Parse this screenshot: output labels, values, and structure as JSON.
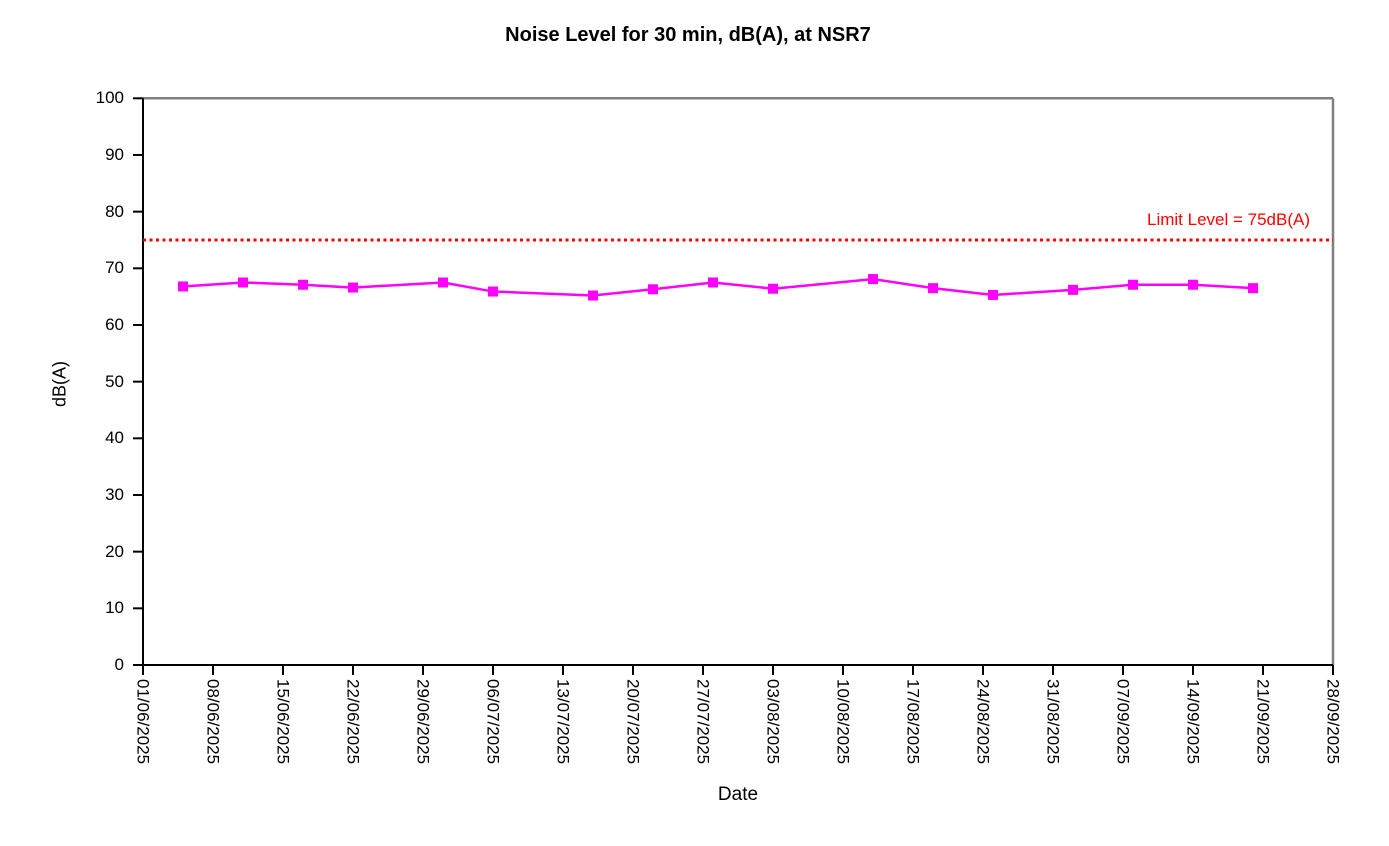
{
  "chart_data": {
    "type": "line",
    "title": "Noise Level for 30 min, dB(A), at NSR7",
    "xlabel": "Date",
    "ylabel": "dB(A)",
    "ylim": [
      0,
      100
    ],
    "ytick_step": 10,
    "grid": false,
    "legend": "none",
    "x_axis": {
      "start": "01/06/2025",
      "end": "28/09/2025",
      "span_days": 119,
      "tick_interval_days": 7,
      "tick_labels": [
        "01/06/2025",
        "08/06/2025",
        "15/06/2025",
        "22/06/2025",
        "29/06/2025",
        "06/07/2025",
        "13/07/2025",
        "20/07/2025",
        "27/07/2025",
        "03/08/2025",
        "10/08/2025",
        "17/08/2025",
        "24/08/2025",
        "31/08/2025",
        "07/09/2025",
        "14/09/2025",
        "21/09/2025",
        "28/09/2025"
      ]
    },
    "series": [
      {
        "color": "#FF00FF",
        "marker": "square",
        "points": [
          {
            "date": "05/06/2025",
            "day": 4,
            "value": 66.8
          },
          {
            "date": "11/06/2025",
            "day": 10,
            "value": 67.5
          },
          {
            "date": "17/06/2025",
            "day": 16,
            "value": 67.1
          },
          {
            "date": "22/06/2025",
            "day": 21,
            "value": 66.6
          },
          {
            "date": "01/07/2025",
            "day": 30,
            "value": 67.5
          },
          {
            "date": "06/07/2025",
            "day": 35,
            "value": 65.9
          },
          {
            "date": "16/07/2025",
            "day": 45,
            "value": 65.2
          },
          {
            "date": "22/07/2025",
            "day": 51,
            "value": 66.3
          },
          {
            "date": "28/07/2025",
            "day": 57,
            "value": 67.5
          },
          {
            "date": "03/08/2025",
            "day": 63,
            "value": 66.4
          },
          {
            "date": "13/08/2025",
            "day": 73,
            "value": 68.1
          },
          {
            "date": "19/08/2025",
            "day": 79,
            "value": 66.5
          },
          {
            "date": "25/08/2025",
            "day": 85,
            "value": 65.3
          },
          {
            "date": "02/09/2025",
            "day": 93,
            "value": 66.2
          },
          {
            "date": "08/09/2025",
            "day": 99,
            "value": 67.1
          },
          {
            "date": "14/09/2025",
            "day": 105,
            "value": 67.1
          },
          {
            "date": "20/09/2025",
            "day": 111,
            "value": 66.5
          }
        ]
      }
    ],
    "limit_line": {
      "value": 75,
      "style": "dotted",
      "color": "#FF0000",
      "label": "Limit Level = 75dB(A)"
    },
    "colors": {
      "axis": "#000000",
      "border_top_right": "#808080",
      "background": "#ffffff"
    }
  }
}
